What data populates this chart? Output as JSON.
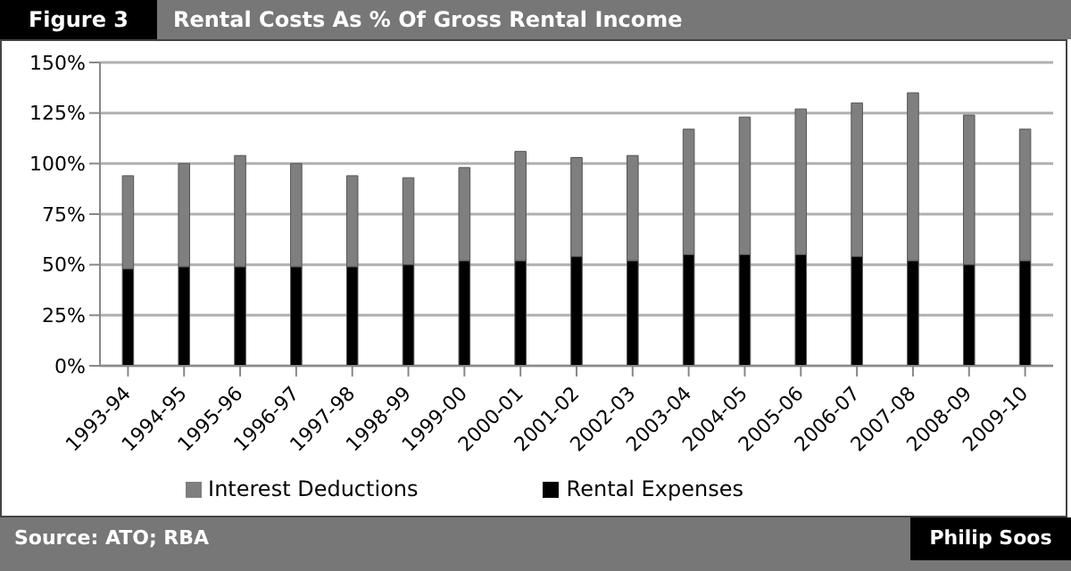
{
  "chart_data": {
    "type": "bar",
    "title": "Rental Costs As % Of Gross Rental Income",
    "annotations": [
      "Figure 3",
      "Source: ATO; RBA",
      "Philip Soos"
    ],
    "categories": [
      "1993-94",
      "1994-95",
      "1995-96",
      "1996-97",
      "1997-98",
      "1998-99",
      "1999-00",
      "2000-01",
      "2001-02",
      "2002-03",
      "2003-04",
      "2004-05",
      "2005-06",
      "2006-07",
      "2007-08",
      "2008-09",
      "2009-10"
    ],
    "stacked": true,
    "series": [
      {
        "name": "Rental Expenses",
        "color": "#000000",
        "values": [
          48,
          49,
          49,
          49,
          49,
          50,
          52,
          52,
          54,
          52,
          55,
          55,
          55,
          54,
          52,
          50,
          52
        ]
      },
      {
        "name": "Interest Deductions",
        "color": "#7f7f7f",
        "values": [
          46,
          51,
          55,
          51,
          45,
          43,
          46,
          54,
          49,
          52,
          62,
          68,
          72,
          76,
          83,
          74,
          65
        ]
      }
    ],
    "ylim": [
      0,
      150
    ],
    "yticks": [
      {
        "value": 0,
        "label": "0%"
      },
      {
        "value": 25,
        "label": "25%"
      },
      {
        "value": 50,
        "label": "50%"
      },
      {
        "value": 75,
        "label": "75%"
      },
      {
        "value": 100,
        "label": "100%"
      },
      {
        "value": 125,
        "label": "125%"
      },
      {
        "value": 150,
        "label": "150%"
      }
    ],
    "grid": "y",
    "legend": "bottom"
  }
}
